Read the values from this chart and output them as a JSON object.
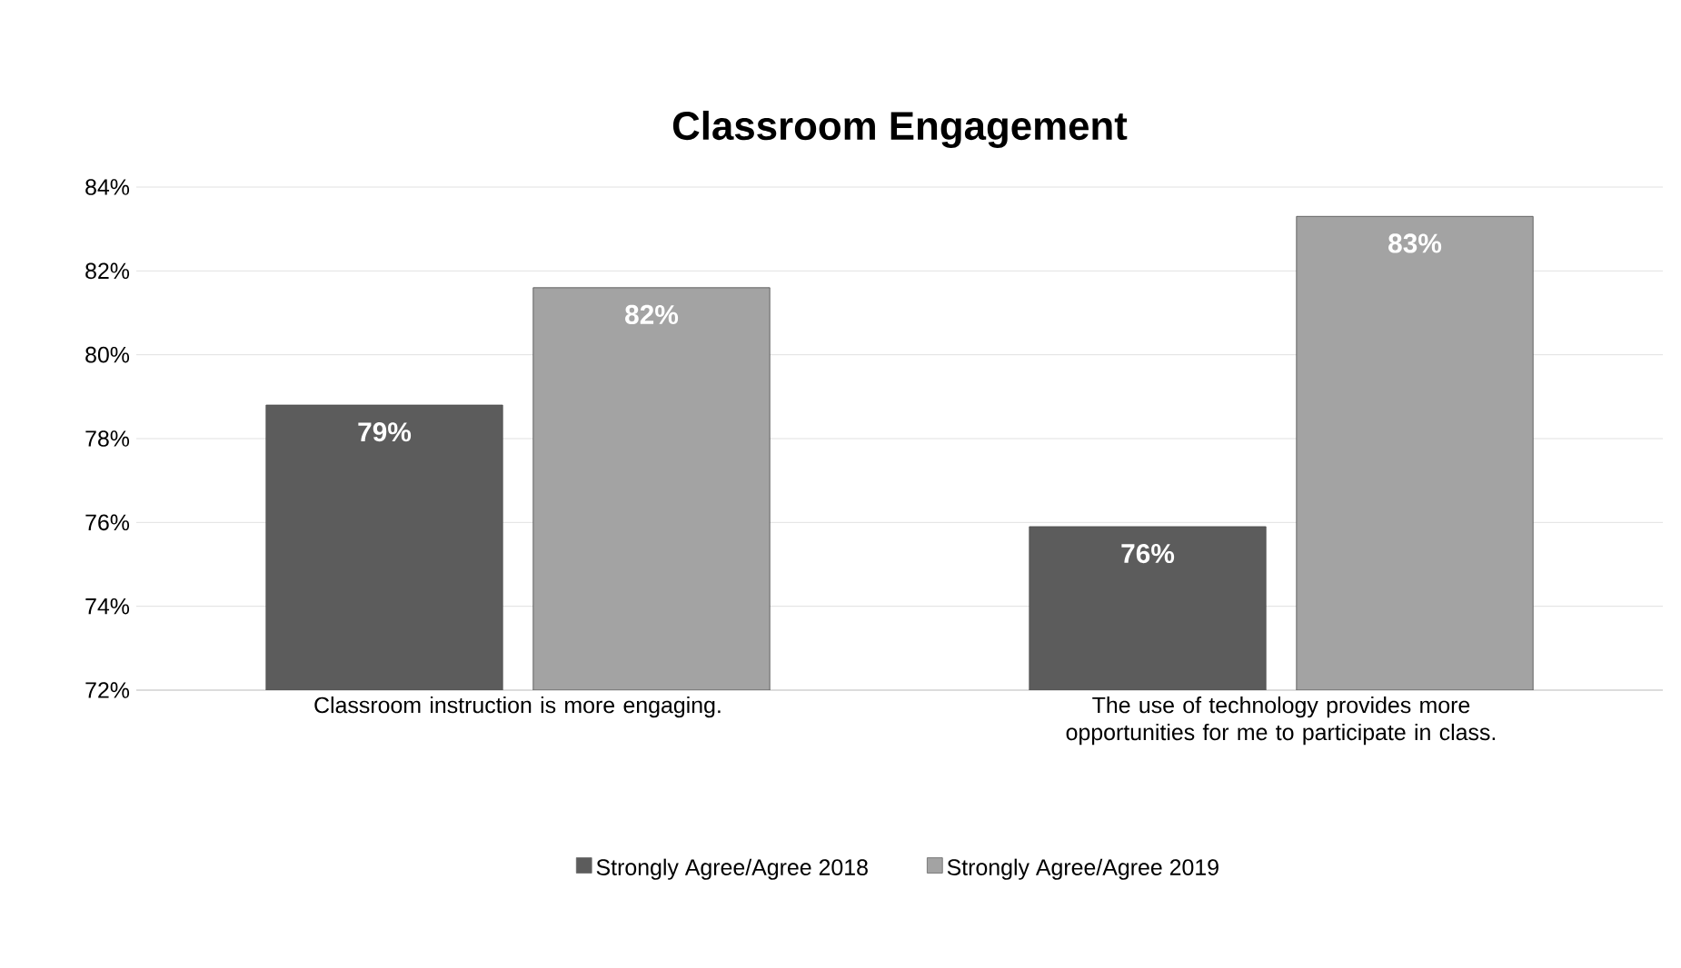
{
  "chart_data": {
    "type": "bar",
    "title": "Classroom Engagement",
    "categories": [
      "Classroom instruction is more engaging.",
      "The use of technology provides more opportunities for me to participate in class."
    ],
    "series": [
      {
        "name": "Strongly Agree/Agree 2018",
        "color": "#5c5c5c",
        "values": [
          78.8,
          75.9
        ],
        "value_labels": [
          "79%",
          "76%"
        ]
      },
      {
        "name": "Strongly Agree/Agree 2019",
        "color": "#a3a3a3",
        "values": [
          81.6,
          83.3
        ],
        "value_labels": [
          "82%",
          "83%"
        ]
      }
    ],
    "ylim": [
      72,
      84
    ],
    "yticks": [
      {
        "value": 72,
        "label": "72%"
      },
      {
        "value": 74,
        "label": "74%"
      },
      {
        "value": 76,
        "label": "76%"
      },
      {
        "value": 78,
        "label": "78%"
      },
      {
        "value": 80,
        "label": "80%"
      },
      {
        "value": 82,
        "label": "82%"
      },
      {
        "value": 84,
        "label": "84%"
      }
    ],
    "grid": "y",
    "legend": "bottom"
  }
}
